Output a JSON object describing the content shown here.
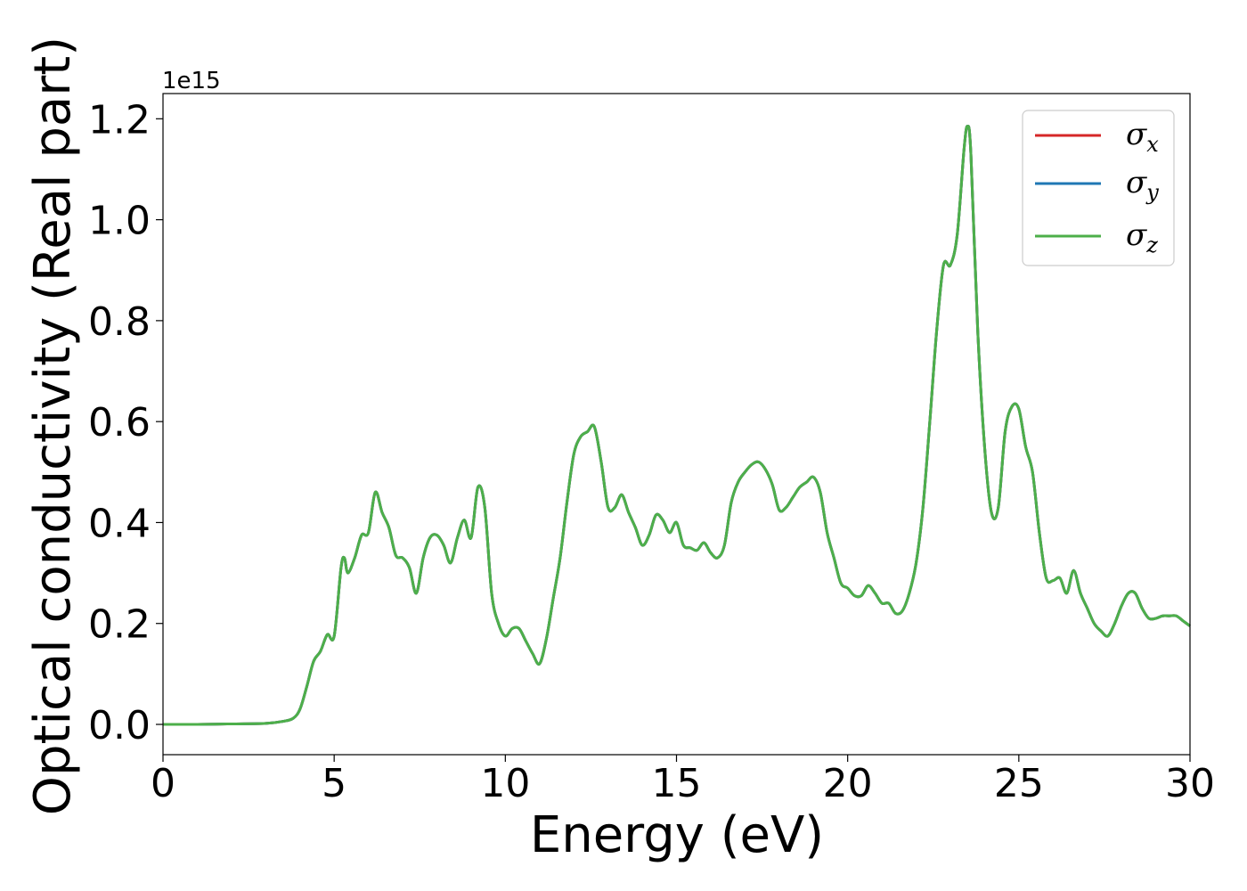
{
  "chart_data": {
    "type": "line",
    "title": "",
    "xlabel": "Energy (eV)",
    "ylabel": "Optical conductivity (Real part)",
    "y_offset_label": "1e15",
    "xlim": [
      0,
      30
    ],
    "ylim": [
      -0.06,
      1.25
    ],
    "xticks": [
      0,
      5,
      10,
      15,
      20,
      25,
      30
    ],
    "xtick_labels": [
      "0",
      "5",
      "10",
      "15",
      "20",
      "25",
      "30"
    ],
    "yticks": [
      0.0,
      0.2,
      0.4,
      0.6,
      0.8,
      1.0,
      1.2
    ],
    "ytick_labels": [
      "0.0",
      "0.2",
      "0.4",
      "0.6",
      "0.8",
      "1.0",
      "1.2"
    ],
    "grid": false,
    "legend_position": "top-right",
    "series": [
      {
        "name": "σx",
        "symbol": "σ",
        "subscript": "x",
        "color": "#d62728"
      },
      {
        "name": "σy",
        "symbol": "σ",
        "subscript": "y",
        "color": "#1f77b4"
      },
      {
        "name": "σz",
        "symbol": "σ",
        "subscript": "z",
        "color": "#4daf4a"
      }
    ],
    "x": [
      0,
      1,
      2,
      3,
      3.5,
      3.8,
      4.0,
      4.2,
      4.4,
      4.6,
      4.8,
      5.0,
      5.2,
      5.3,
      5.4,
      5.6,
      5.8,
      6.0,
      6.2,
      6.4,
      6.6,
      6.8,
      7.0,
      7.2,
      7.4,
      7.6,
      7.8,
      8.0,
      8.2,
      8.4,
      8.6,
      8.8,
      9.0,
      9.2,
      9.4,
      9.6,
      9.8,
      10.0,
      10.2,
      10.4,
      10.6,
      10.8,
      11.0,
      11.2,
      11.4,
      11.6,
      11.8,
      12.0,
      12.2,
      12.4,
      12.6,
      12.8,
      13.0,
      13.2,
      13.4,
      13.6,
      13.8,
      14.0,
      14.2,
      14.4,
      14.6,
      14.8,
      15.0,
      15.2,
      15.4,
      15.6,
      15.8,
      16.0,
      16.2,
      16.4,
      16.6,
      16.8,
      17.0,
      17.2,
      17.4,
      17.6,
      17.8,
      18.0,
      18.2,
      18.4,
      18.6,
      18.8,
      19.0,
      19.2,
      19.4,
      19.6,
      19.8,
      20.0,
      20.2,
      20.4,
      20.6,
      20.8,
      21.0,
      21.2,
      21.4,
      21.6,
      21.8,
      22.0,
      22.2,
      22.4,
      22.6,
      22.8,
      23.0,
      23.2,
      23.4,
      23.5,
      23.6,
      23.8,
      24.0,
      24.2,
      24.4,
      24.6,
      24.8,
      25.0,
      25.2,
      25.4,
      25.6,
      25.8,
      26.0,
      26.2,
      26.4,
      26.6,
      26.8,
      27.0,
      27.2,
      27.4,
      27.6,
      27.8,
      28.0,
      28.2,
      28.4,
      28.6,
      28.8,
      29.0,
      29.2,
      29.4,
      29.6,
      29.8,
      30.0
    ],
    "values": [
      0.0,
      0.0,
      0.001,
      0.002,
      0.006,
      0.012,
      0.03,
      0.075,
      0.125,
      0.145,
      0.178,
      0.175,
      0.31,
      0.33,
      0.3,
      0.33,
      0.375,
      0.38,
      0.46,
      0.42,
      0.39,
      0.335,
      0.33,
      0.31,
      0.26,
      0.33,
      0.37,
      0.375,
      0.355,
      0.32,
      0.37,
      0.405,
      0.37,
      0.47,
      0.43,
      0.26,
      0.2,
      0.175,
      0.19,
      0.19,
      0.165,
      0.14,
      0.12,
      0.17,
      0.25,
      0.33,
      0.44,
      0.535,
      0.57,
      0.58,
      0.59,
      0.52,
      0.43,
      0.43,
      0.455,
      0.42,
      0.39,
      0.355,
      0.375,
      0.415,
      0.405,
      0.38,
      0.4,
      0.355,
      0.35,
      0.345,
      0.36,
      0.34,
      0.33,
      0.355,
      0.44,
      0.48,
      0.5,
      0.515,
      0.52,
      0.505,
      0.475,
      0.425,
      0.43,
      0.45,
      0.47,
      0.48,
      0.49,
      0.46,
      0.38,
      0.33,
      0.28,
      0.27,
      0.255,
      0.255,
      0.275,
      0.26,
      0.24,
      0.24,
      0.22,
      0.225,
      0.26,
      0.32,
      0.43,
      0.6,
      0.78,
      0.91,
      0.91,
      0.97,
      1.14,
      1.185,
      1.13,
      0.78,
      0.55,
      0.42,
      0.43,
      0.58,
      0.63,
      0.625,
      0.55,
      0.5,
      0.38,
      0.29,
      0.285,
      0.29,
      0.26,
      0.305,
      0.26,
      0.23,
      0.2,
      0.185,
      0.175,
      0.2,
      0.235,
      0.26,
      0.26,
      0.23,
      0.21,
      0.21,
      0.215,
      0.215,
      0.215,
      0.205,
      0.195
    ]
  }
}
